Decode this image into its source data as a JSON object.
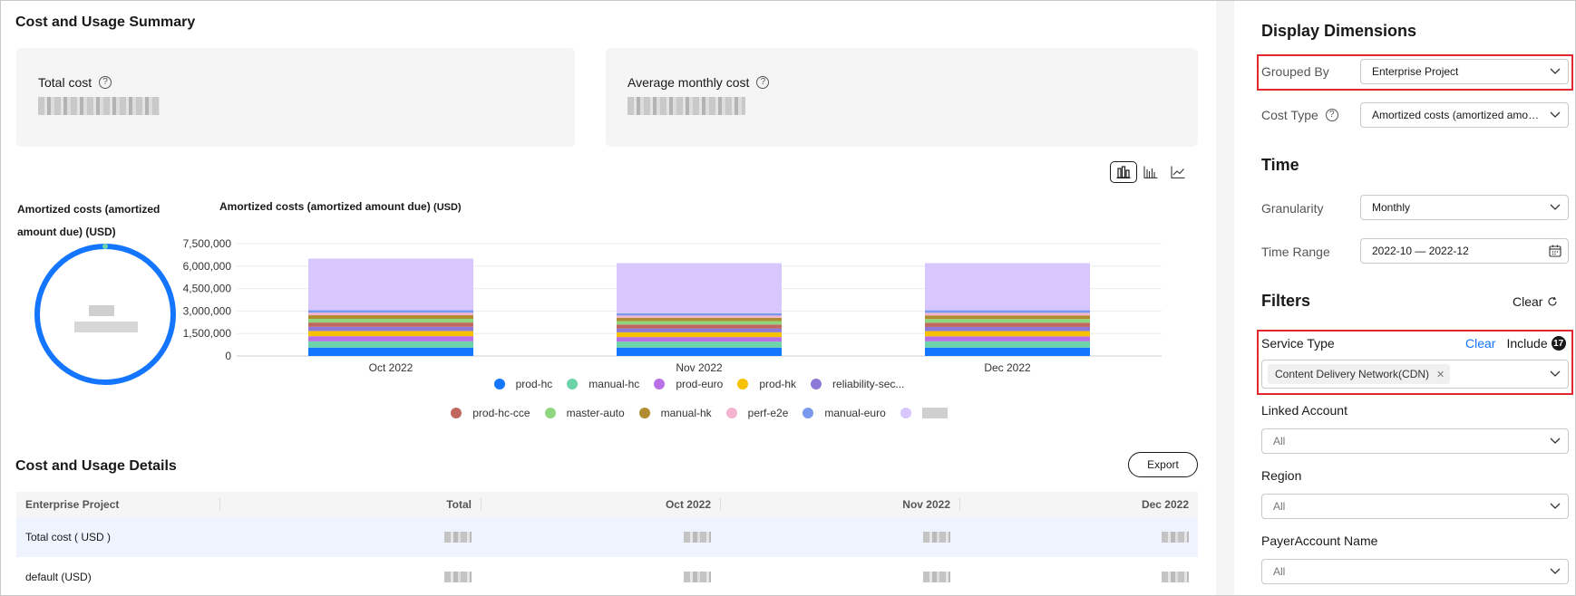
{
  "summary": {
    "title": "Cost and Usage Summary",
    "total_cost_label": "Total cost",
    "avg_monthly_label": "Average monthly cost"
  },
  "view_toggle": {
    "icons": [
      "stacked-bar-icon",
      "grouped-bar-icon",
      "line-chart-icon"
    ],
    "active": "stacked-bar-icon"
  },
  "donut": {
    "title": "Amortized costs (amortized amount due) (USD)",
    "color": "#1476ff"
  },
  "chart_data": {
    "type": "bar",
    "stacked": true,
    "title": "Amortized costs (amortized amount due)",
    "title_unit": "(USD)",
    "categories": [
      "Oct 2022",
      "Nov 2022",
      "Dec 2022"
    ],
    "y_ticks": [
      "7,500,000",
      "6,000,000",
      "4,500,000",
      "3,000,000",
      "1,500,000",
      "0"
    ],
    "ylim": [
      0,
      7500000
    ],
    "grid": true,
    "legend_position": "bottom",
    "series": [
      {
        "name": "prod-hc",
        "color": "#1476ff",
        "values": [
          560000,
          560000,
          560000
        ]
      },
      {
        "name": "manual-hc",
        "color": "#6dd3a9",
        "values": [
          420000,
          400000,
          420000
        ]
      },
      {
        "name": "prod-euro",
        "color": "#b96fe6",
        "values": [
          340000,
          300000,
          330000
        ]
      },
      {
        "name": "prod-hk",
        "color": "#f7c000",
        "values": [
          350000,
          320000,
          350000
        ]
      },
      {
        "name": "reliability-sec...",
        "color": "#8d7ad8",
        "values": [
          280000,
          260000,
          280000
        ]
      },
      {
        "name": "prod-hc-cce",
        "color": "#c0675f",
        "values": [
          280000,
          260000,
          280000
        ]
      },
      {
        "name": "master-auto",
        "color": "#8fd67e",
        "values": [
          250000,
          230000,
          250000
        ]
      },
      {
        "name": "manual-hk",
        "color": "#b18b2f",
        "values": [
          240000,
          220000,
          240000
        ]
      },
      {
        "name": "perf-e2e",
        "color": "#f4b4cf",
        "values": [
          170000,
          150000,
          170000
        ]
      },
      {
        "name": "manual-euro",
        "color": "#7899ee",
        "values": [
          170000,
          150000,
          170000
        ]
      },
      {
        "name": "",
        "color": "#d8c7fd",
        "values": [
          3440000,
          3350000,
          3150000
        ]
      }
    ]
  },
  "details": {
    "title": "Cost and Usage Details",
    "export_label": "Export",
    "columns": [
      "Enterprise Project",
      "Total",
      "Oct 2022",
      "Nov 2022",
      "Dec 2022"
    ],
    "rows": [
      {
        "name": "Total cost ( USD )",
        "highlight": true
      },
      {
        "name": "default (USD)",
        "highlight": false
      }
    ]
  },
  "panel": {
    "display_dimensions": "Display Dimensions",
    "grouped_by_label": "Grouped By",
    "grouped_by_value": "Enterprise Project",
    "cost_type_label": "Cost Type",
    "cost_type_value": "Amortized costs (amortized amount due)",
    "time_title": "Time",
    "granularity_label": "Granularity",
    "granularity_value": "Monthly",
    "time_range_label": "Time Range",
    "time_range_value": "2022-10 — 2022-12",
    "filters_title": "Filters",
    "filters_clear": "Clear",
    "service_type_label": "Service Type",
    "service_type_clear": "Clear",
    "service_type_include": "Include",
    "service_type_count": "17",
    "service_type_tag": "Content Delivery Network(CDN)",
    "linked_account_label": "Linked Account",
    "linked_account_value": "All",
    "region_label": "Region",
    "region_value": "All",
    "payer_label": "PayerAccount Name",
    "payer_value": "All"
  }
}
